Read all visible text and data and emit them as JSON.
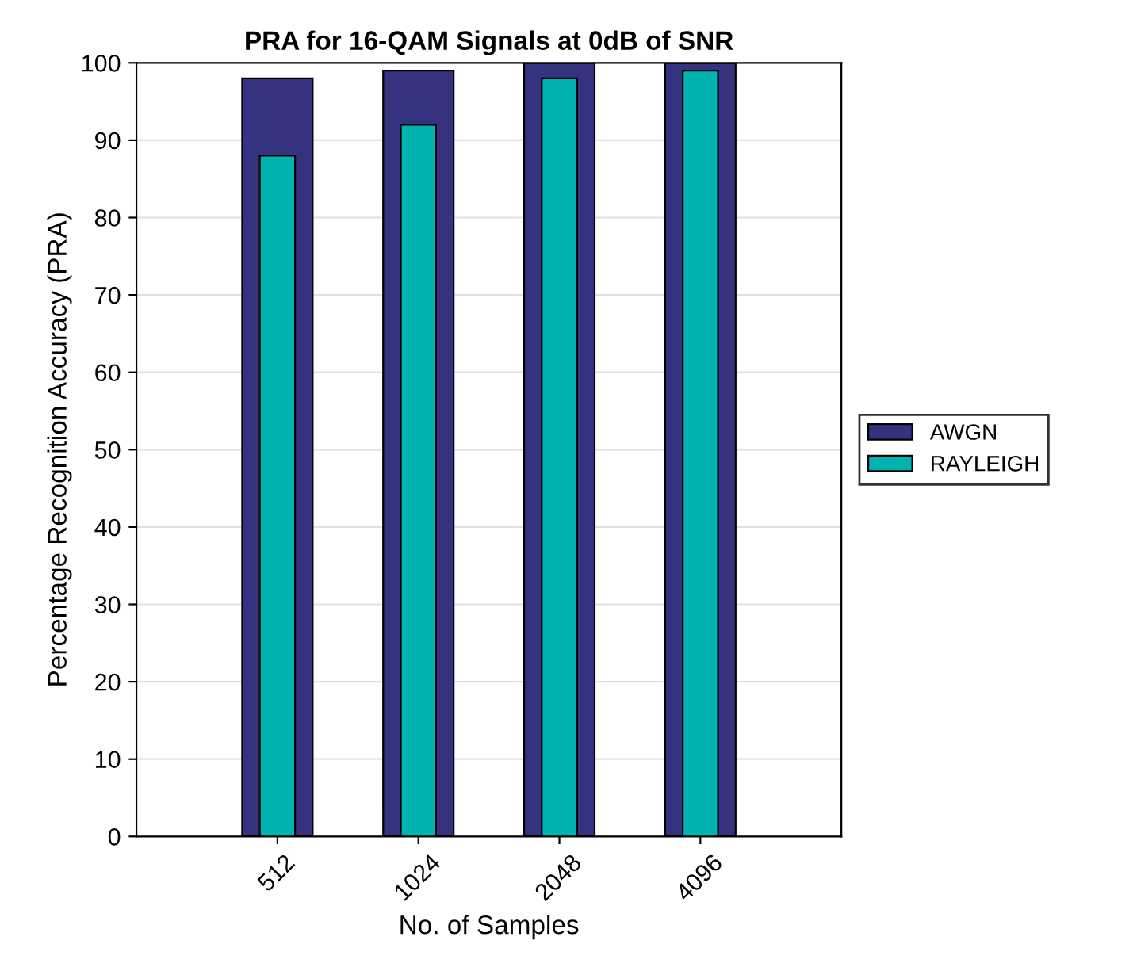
{
  "chart_data": {
    "type": "bar",
    "title": "PRA for 16-QAM Signals at 0dB of SNR",
    "xlabel": "No. of Samples",
    "ylabel": "Percentage Recognition Accuracy (PRA)",
    "categories": [
      "512",
      "1024",
      "2048",
      "4096"
    ],
    "series": [
      {
        "name": "AWGN",
        "color": "#35337f",
        "values": [
          98,
          99,
          100,
          100
        ]
      },
      {
        "name": "RAYLEIGH",
        "color": "#00b2b0",
        "values": [
          88,
          92,
          98,
          99
        ]
      }
    ],
    "ylim": [
      0,
      100
    ],
    "yticks": [
      0,
      10,
      20,
      30,
      40,
      50,
      60,
      70,
      80,
      90,
      100
    ],
    "grid": "y",
    "legend": "right"
  }
}
